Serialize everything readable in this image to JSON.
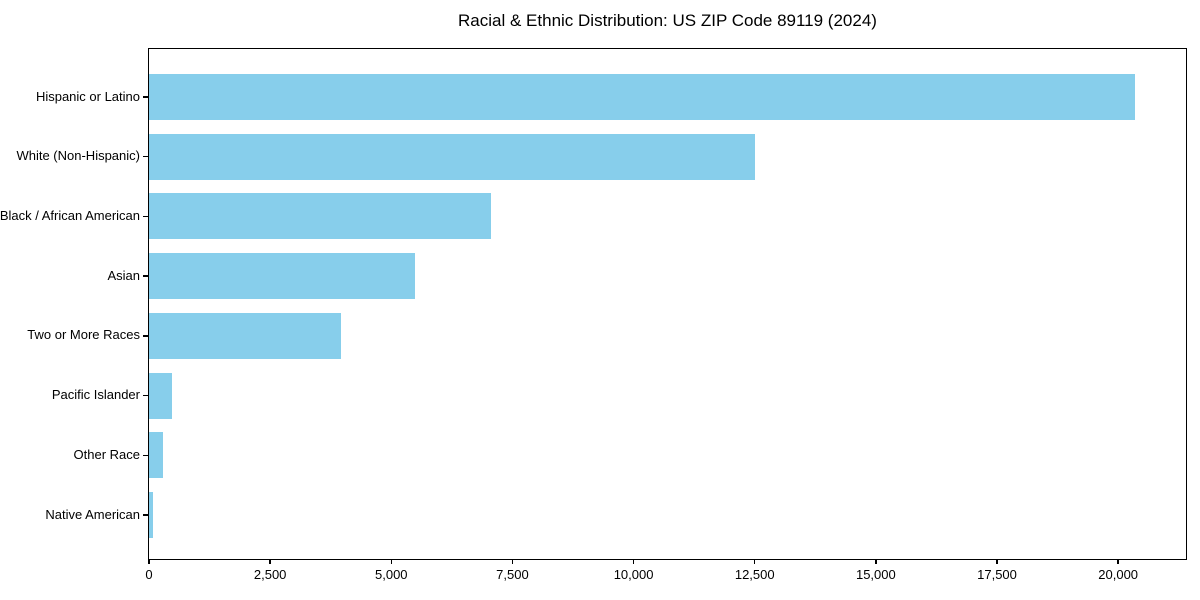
{
  "title": "Racial & Ethnic Distribution: US ZIP Code 89119 (2024)",
  "colors": {
    "bar": "#87CEEB",
    "axis": "#000000",
    "text": "#000000",
    "background": "#FFFFFF"
  },
  "chart_data": {
    "type": "bar",
    "orientation": "horizontal",
    "title": "Racial & Ethnic Distribution: US ZIP Code 89119 (2024)",
    "categories": [
      "Hispanic or Latino",
      "White (Non-Hispanic)",
      "Black / African American",
      "Asian",
      "Two or More Races",
      "Pacific Islander",
      "Other Race",
      "Native American"
    ],
    "values": [
      20350,
      12500,
      7060,
      5490,
      3960,
      480,
      290,
      75
    ],
    "xlabel": "",
    "ylabel": "",
    "xlim": [
      0,
      21400
    ],
    "x_ticks": [
      0,
      2500,
      5000,
      7500,
      10000,
      12500,
      15000,
      17500,
      20000
    ],
    "x_tick_labels": [
      "0",
      "2,500",
      "5,000",
      "7,500",
      "10,000",
      "12,500",
      "15,000",
      "17,500",
      "20,000"
    ],
    "grid": false,
    "legend": "none",
    "bar_color": "#87CEEB"
  }
}
